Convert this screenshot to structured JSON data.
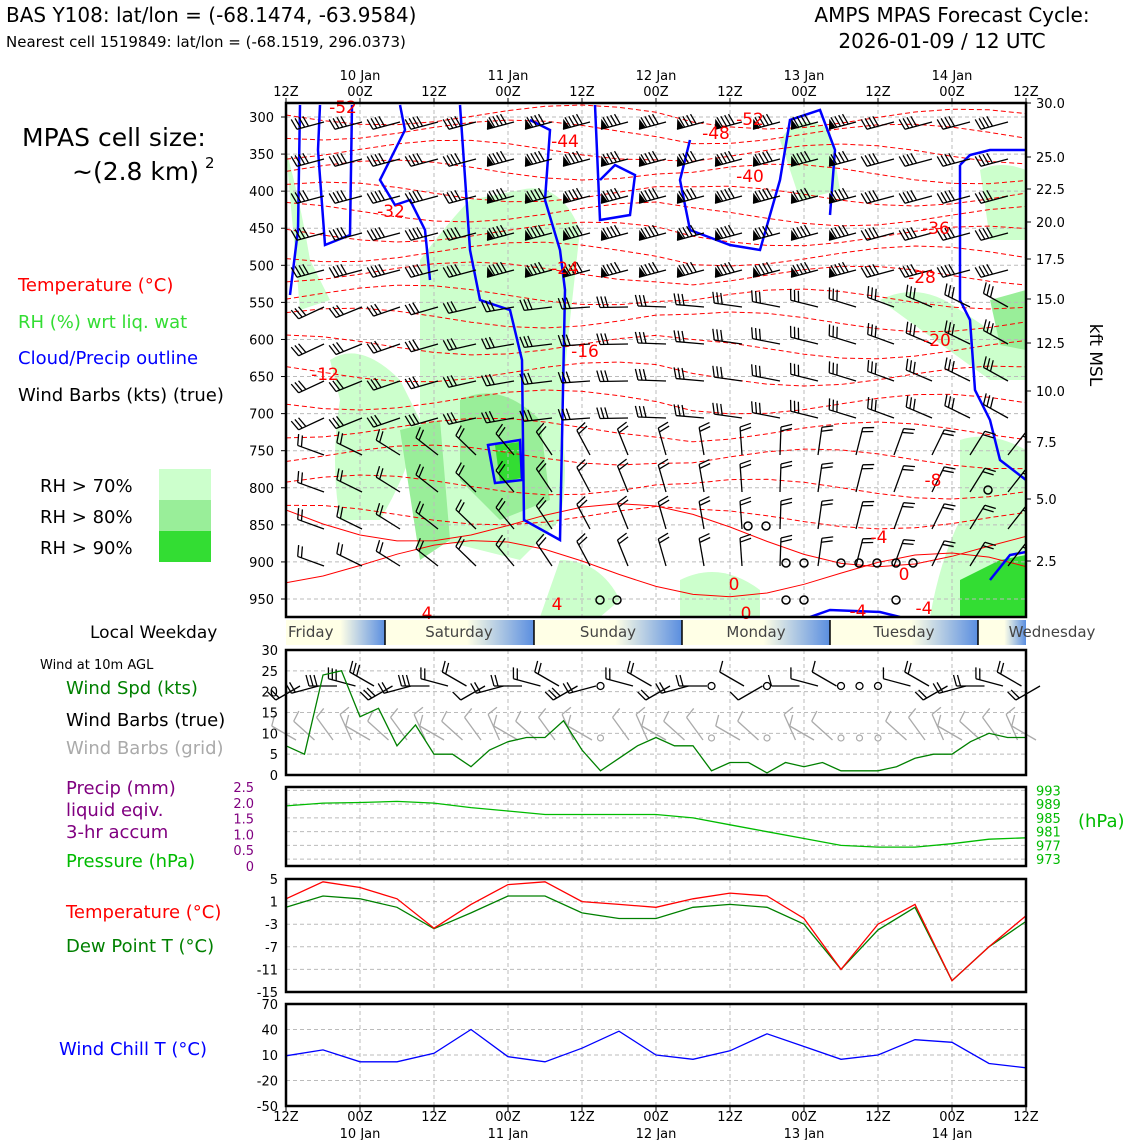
{
  "header": {
    "station_line": "BAS Y108: lat/lon = (-68.1474, -63.9584)",
    "nearest_line": "Nearest cell 1519849: lat/lon = (-68.1519, 296.0373)",
    "cycle_title": "AMPS MPAS Forecast Cycle:",
    "cycle_date": "2026-01-09 / 12 UTC"
  },
  "legend": {
    "cell_size_title": "MPAS cell size:",
    "cell_size_value": "~(2.8 km)",
    "cell_size_exp": "2",
    "temperature": "Temperature (°C)",
    "rh": "RH (%) wrt liq. wat",
    "cloud": "Cloud/Precip outline",
    "barbs": "Wind Barbs (kts) (true)",
    "rh70": "RH > 70%",
    "rh80": "RH > 80%",
    "rh90": "RH > 90%",
    "local_weekday": "Local Weekday",
    "wind10m": "Wind at 10m AGL",
    "wind_spd": "Wind Spd (kts)",
    "wind_barbs_true": "Wind Barbs (true)",
    "wind_barbs_grid": "Wind Barbs (grid)",
    "precip1": "Precip (mm)",
    "precip2": "liquid eqiv.",
    "precip3": "3-hr accum",
    "pressure": "Pressure (hPa)",
    "hpa_unit": "(hPa)",
    "sfc_temp": "Temperature (°C)",
    "dewpoint": "Dew Point T (°C)",
    "windchill": "Wind Chill T (°C)",
    "kft": "kft MSL"
  },
  "colors": {
    "temp": "#ff0000",
    "rh_text": "#33dd33",
    "cloud": "#0000ff",
    "rh70": "#ccffcc",
    "rh80": "#99ee99",
    "rh90": "#33dd33",
    "precip": "#800080",
    "pressure": "#00bb00",
    "dew": "#008000",
    "chill": "#0000ff",
    "grid_barb": "#aaaaaa"
  },
  "chart_data": [
    {
      "type": "contour",
      "name": "time-height cross section",
      "time_ticks_top": [
        "12Z",
        "00Z",
        "12Z",
        "00Z",
        "12Z",
        "00Z",
        "12Z",
        "00Z",
        "12Z",
        "00Z",
        "12Z"
      ],
      "date_labels": [
        "10 Jan",
        "11 Jan",
        "12 Jan",
        "13 Jan",
        "14 Jan"
      ],
      "pressure_levels": [
        300,
        350,
        400,
        450,
        500,
        550,
        600,
        650,
        700,
        750,
        800,
        850,
        900,
        950
      ],
      "kft_labels": [
        "30.0",
        "25.0",
        "22.5",
        "20.0",
        "17.5",
        "15.0",
        "12.5",
        "10.0",
        "7.5",
        "5.0",
        "2.5"
      ],
      "temperature_labels": [
        "-52",
        "-44",
        "-48",
        "-52",
        "-40",
        "-32",
        "-36",
        "-24",
        "-28",
        "-16",
        "-20",
        "-12",
        "-8",
        "-4",
        "0",
        "0",
        "4",
        "4",
        "-4",
        "-4",
        "0"
      ],
      "ylim": [
        300,
        980
      ]
    },
    {
      "type": "category-strip",
      "name": "local weekday",
      "days": [
        "Friday",
        "Saturday",
        "Sunday",
        "Monday",
        "Tuesday",
        "Wednesday"
      ]
    },
    {
      "type": "line",
      "name": "10m wind speed",
      "yticks": [
        "0",
        "5",
        "10",
        "15",
        "20",
        "25",
        "30"
      ],
      "ylim": [
        0,
        30
      ],
      "x_hours": [
        0,
        3,
        6,
        9,
        12,
        15,
        18,
        21,
        24,
        27,
        30,
        33,
        36,
        39,
        42,
        45,
        48,
        51,
        54,
        57,
        60,
        63,
        66,
        69,
        72,
        75,
        78,
        81,
        84,
        87,
        90,
        93,
        96,
        99,
        102,
        105,
        108,
        111,
        114,
        117,
        120
      ],
      "wind_speed": [
        7,
        5,
        24,
        25,
        14,
        16,
        7,
        12,
        5,
        5,
        2,
        6,
        8,
        9,
        9,
        13,
        6,
        1,
        4,
        7,
        9,
        7,
        7,
        1,
        3,
        3,
        0.5,
        3,
        2,
        3,
        1,
        1,
        1,
        2,
        4,
        5,
        5,
        8,
        10,
        9,
        9
      ]
    },
    {
      "type": "line",
      "name": "pressure",
      "yticks_left": [
        "0",
        "0.5",
        "1.0",
        "1.5",
        "2.0",
        "2.5"
      ],
      "yticks_right": [
        "973",
        "977",
        "981",
        "985",
        "989",
        "993"
      ],
      "ylim": [
        973,
        993
      ],
      "x_hours": [
        0,
        6,
        12,
        18,
        24,
        30,
        36,
        42,
        48,
        54,
        60,
        66,
        72,
        78,
        84,
        90,
        96,
        102,
        108,
        114,
        120
      ],
      "pressure": [
        988.5,
        989.3,
        989.5,
        989.8,
        989.3,
        988,
        987,
        986,
        986,
        986,
        986,
        985,
        983,
        981,
        979,
        977,
        976.5,
        976.5,
        977.5,
        978.8,
        979.2
      ]
    },
    {
      "type": "line",
      "name": "surface temperature and dew point",
      "yticks": [
        "5",
        "1",
        "-3",
        "-7",
        "-11",
        "-15"
      ],
      "ylim": [
        -15,
        5
      ],
      "x_hours": [
        0,
        6,
        12,
        18,
        24,
        30,
        36,
        42,
        48,
        54,
        60,
        66,
        72,
        78,
        84,
        90,
        96,
        102,
        108,
        114,
        120
      ],
      "temperature": [
        1.5,
        4.5,
        3.5,
        1.5,
        -3.7,
        0.5,
        4,
        4.5,
        1,
        0.5,
        0,
        1.5,
        2.5,
        2,
        -2,
        -11,
        -3,
        0.5,
        -13,
        -7,
        -1.5
      ],
      "dewpoint": [
        0,
        2,
        1.5,
        0,
        -3.8,
        -1,
        2,
        2,
        -1,
        -2,
        -2,
        0,
        0.5,
        0,
        -3,
        -11,
        -4,
        0,
        -13,
        -7,
        -2.5
      ]
    },
    {
      "type": "line",
      "name": "wind chill",
      "yticks": [
        "70",
        "40",
        "10",
        "-20",
        "-50"
      ],
      "ylim": [
        -50,
        70
      ],
      "x_hours": [
        0,
        6,
        12,
        18,
        24,
        30,
        36,
        42,
        48,
        54,
        60,
        66,
        72,
        78,
        84,
        90,
        96,
        102,
        108,
        114,
        120
      ],
      "wind_chill": [
        9,
        16,
        2,
        2,
        12,
        40,
        8,
        2,
        18,
        38,
        10,
        5,
        15,
        35,
        20,
        5,
        10,
        28,
        25,
        0,
        -5
      ],
      "bottom_dates": [
        "10 Jan",
        "11 Jan",
        "12 Jan",
        "13 Jan",
        "14 Jan"
      ]
    }
  ]
}
